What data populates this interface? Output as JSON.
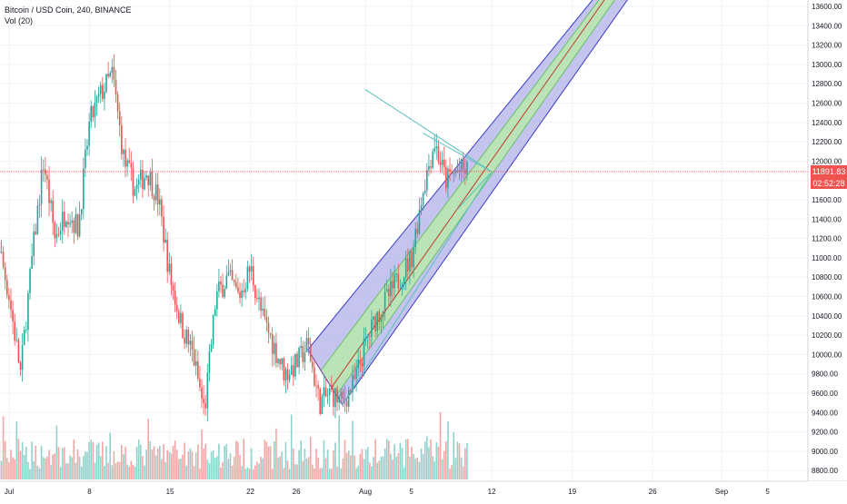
{
  "header": {
    "symbol_line": "Bitcoin / USD Coin, 240, BINANCE",
    "volume_indicator": "Vol (20)"
  },
  "price_axis": {
    "ticks": [
      "13600.00",
      "13400.00",
      "13200.00",
      "13000.00",
      "12800.00",
      "12600.00",
      "12400.00",
      "12200.00",
      "12000.00",
      "11800.00",
      "11600.00",
      "11400.00",
      "11200.00",
      "11000.00",
      "10800.00",
      "10600.00",
      "10400.00",
      "10200.00",
      "10000.00",
      "9800.00",
      "9600.00",
      "9400.00",
      "9200.00",
      "9000.00",
      "8800.00"
    ],
    "last_price_label": "11891.83",
    "countdown_label": "02:52:28"
  },
  "time_axis": {
    "ticks": [
      "Jul",
      "8",
      "15",
      "22",
      "26",
      "Aug",
      "5",
      "12",
      "19",
      "26",
      "Sep",
      "5"
    ]
  },
  "colors": {
    "up": "#26a69a",
    "down": "#ef5350",
    "up_volume": "#8ed3cc",
    "down_volume": "#f5a6a4",
    "channel_outer_fill": "#b0b0e8",
    "channel_outer_stroke": "#3c3cc8",
    "channel_inner_fill": "#b9e6b3",
    "channel_mid_line": "#c0392b",
    "fan_line": "#5bc0be",
    "price_line": "#ef5350",
    "grid": "#f0f3fa"
  },
  "chart_data": {
    "type": "candlestick",
    "symbol": "Bitcoin / USD Coin",
    "interval": "240",
    "exchange": "BINANCE",
    "x_range": [
      "2019-06-29",
      "2019-09-08"
    ],
    "y_range": [
      8700,
      13680
    ],
    "last_price": 11891.83,
    "price_path": [
      {
        "date": "2019-06-29",
        "price": 11800
      },
      {
        "date": "2019-07-01",
        "price": 10600
      },
      {
        "date": "2019-07-02",
        "price": 9800
      },
      {
        "date": "2019-07-03",
        "price": 11000
      },
      {
        "date": "2019-07-04",
        "price": 12000
      },
      {
        "date": "2019-07-05",
        "price": 11200
      },
      {
        "date": "2019-07-06",
        "price": 11500
      },
      {
        "date": "2019-07-07",
        "price": 11300
      },
      {
        "date": "2019-07-08",
        "price": 12400
      },
      {
        "date": "2019-07-09",
        "price": 12700
      },
      {
        "date": "2019-07-10",
        "price": 12900
      },
      {
        "date": "2019-07-11",
        "price": 12000
      },
      {
        "date": "2019-07-12",
        "price": 11700
      },
      {
        "date": "2019-07-13",
        "price": 11900
      },
      {
        "date": "2019-07-14",
        "price": 11600
      },
      {
        "date": "2019-07-15",
        "price": 10800
      },
      {
        "date": "2019-07-16",
        "price": 10300
      },
      {
        "date": "2019-07-17",
        "price": 10000
      },
      {
        "date": "2019-07-18",
        "price": 9400
      },
      {
        "date": "2019-07-19",
        "price": 10600
      },
      {
        "date": "2019-07-20",
        "price": 10800
      },
      {
        "date": "2019-07-21",
        "price": 10600
      },
      {
        "date": "2019-07-22",
        "price": 10900
      },
      {
        "date": "2019-07-23",
        "price": 10400
      },
      {
        "date": "2019-07-24",
        "price": 10100
      },
      {
        "date": "2019-07-25",
        "price": 9800
      },
      {
        "date": "2019-07-26",
        "price": 9900
      },
      {
        "date": "2019-07-27",
        "price": 10100
      },
      {
        "date": "2019-07-28",
        "price": 9500
      },
      {
        "date": "2019-07-29",
        "price": 9600
      },
      {
        "date": "2019-07-30",
        "price": 9500
      },
      {
        "date": "2019-07-31",
        "price": 9700
      },
      {
        "date": "2019-08-01",
        "price": 10100
      },
      {
        "date": "2019-08-02",
        "price": 10400
      },
      {
        "date": "2019-08-03",
        "price": 10600
      },
      {
        "date": "2019-08-04",
        "price": 10800
      },
      {
        "date": "2019-08-05",
        "price": 11000
      },
      {
        "date": "2019-08-06",
        "price": 11700
      },
      {
        "date": "2019-08-07",
        "price": 12200
      },
      {
        "date": "2019-08-08",
        "price": 11800
      },
      {
        "date": "2019-08-09",
        "price": 11900
      },
      {
        "date": "2019-08-10",
        "price": 11891.83
      }
    ],
    "drawings": {
      "pitchfork_channel": {
        "upper_line": [
          {
            "date": "2019-07-27",
            "price": 10050
          },
          {
            "date": "2019-08-21",
            "price": 13700
          }
        ],
        "median_line": [
          {
            "date": "2019-07-29",
            "price": 9650
          },
          {
            "date": "2019-08-22",
            "price": 13700
          }
        ],
        "lower_line": [
          {
            "date": "2019-07-30",
            "price": 9480
          },
          {
            "date": "2019-08-24",
            "price": 13700
          }
        ]
      },
      "fan_lines": [
        [
          {
            "date": "2019-08-01",
            "price": 12740
          },
          {
            "date": "2019-08-12",
            "price": 11890
          }
        ],
        [
          {
            "date": "2019-07-30",
            "price": 9480
          },
          {
            "date": "2019-08-12",
            "price": 11890
          }
        ],
        [
          {
            "date": "2019-08-06",
            "price": 12290
          },
          {
            "date": "2019-08-12",
            "price": 11890
          }
        ],
        [
          {
            "date": "2019-08-09",
            "price": 11500
          },
          {
            "date": "2019-08-12",
            "price": 11890
          }
        ]
      ]
    },
    "volume": {
      "label": "Vol (20)"
    }
  }
}
